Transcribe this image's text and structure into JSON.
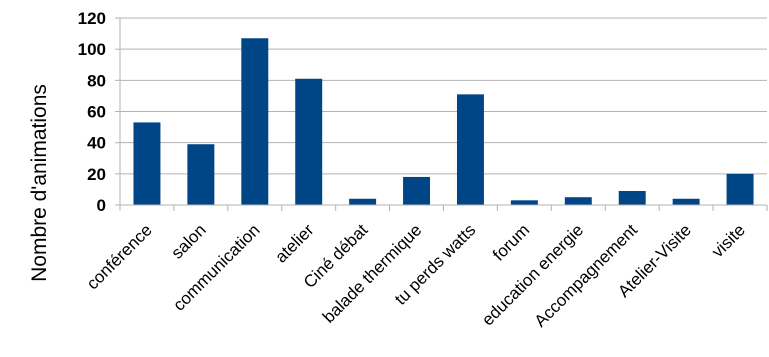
{
  "chart_data": {
    "type": "bar",
    "title": "",
    "xlabel": "",
    "ylabel": "Nombre d'animations",
    "categories": [
      "conférence",
      "salon",
      "communication",
      "atelier",
      "Ciné débat",
      "balade thermique",
      "tu perds watts",
      "forum",
      "education energie",
      "Accompagnement",
      "Atelier-Visite",
      "visite"
    ],
    "values": [
      53,
      39,
      107,
      81,
      4,
      18,
      71,
      3,
      5,
      9,
      4,
      20
    ],
    "ylim": [
      0,
      120
    ],
    "yticks": [
      0,
      20,
      40,
      60,
      80,
      100,
      120
    ],
    "grid": true,
    "legend": "none",
    "bar_color": "#004586",
    "grid_color": "#b3b3b3"
  }
}
